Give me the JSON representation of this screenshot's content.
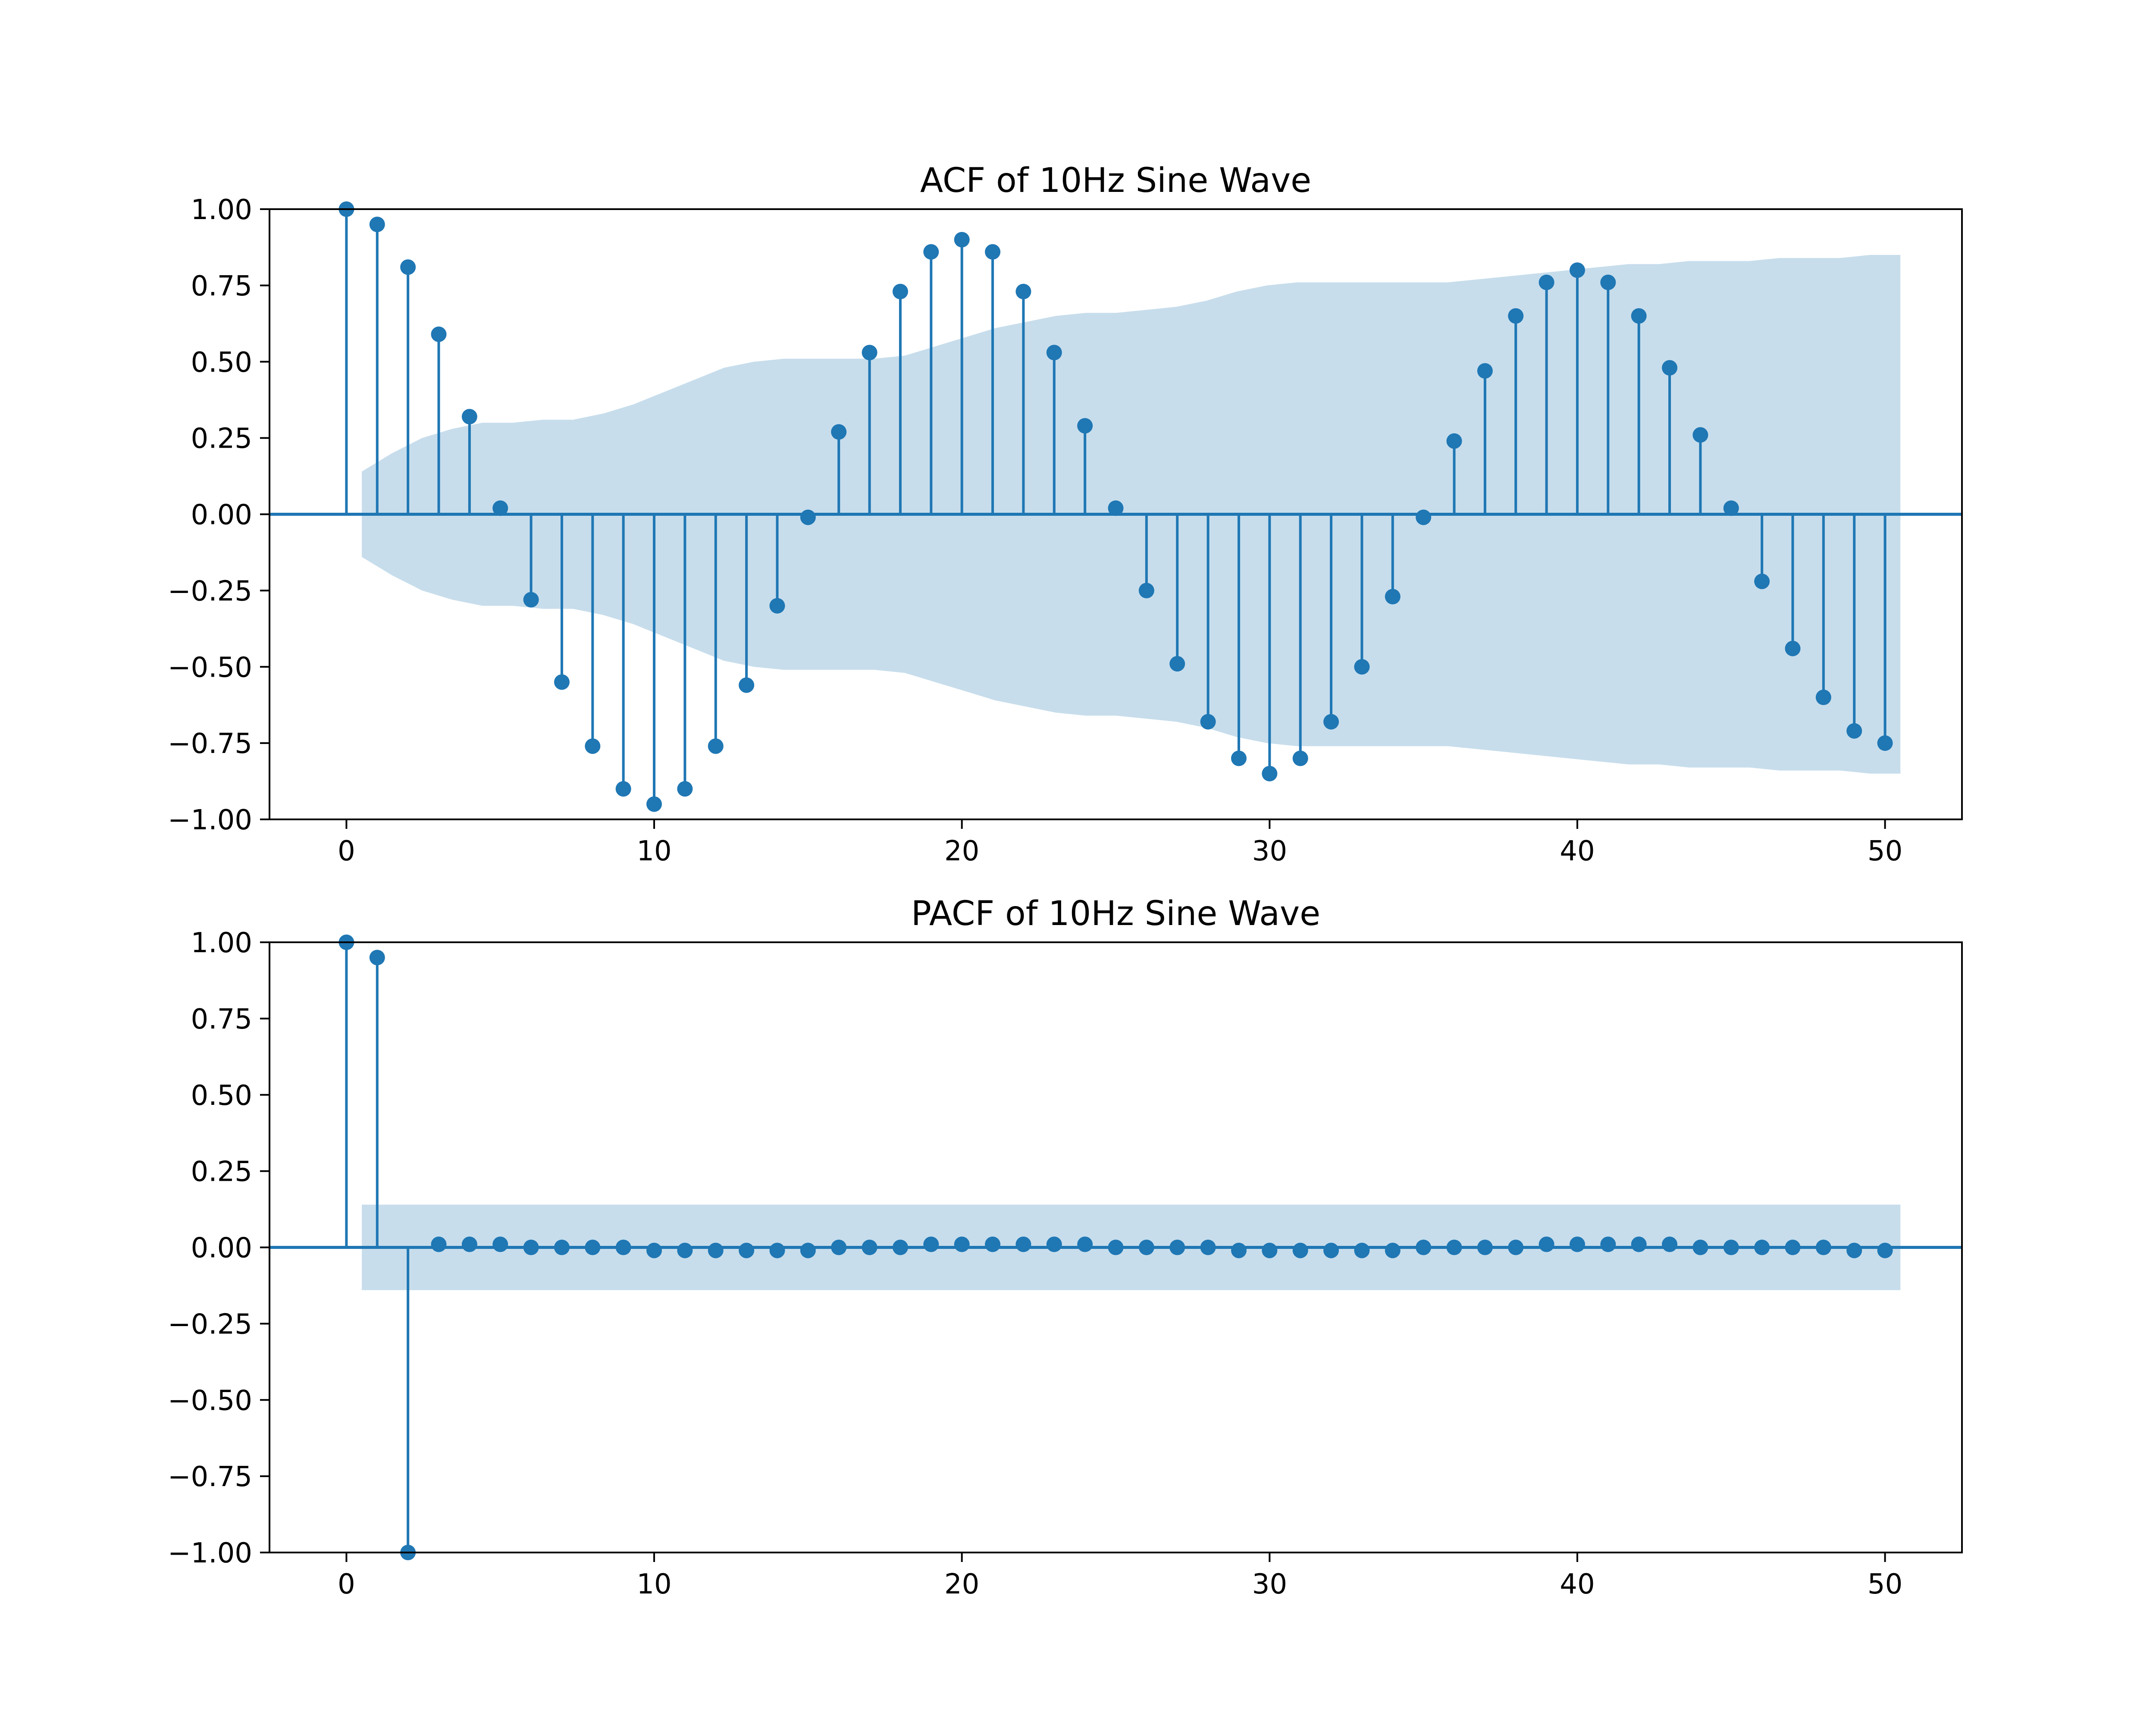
{
  "colors": {
    "stem": "#1f77b4",
    "confidence_band": "#1f77b4",
    "axes": "#000000",
    "background": "#ffffff"
  },
  "chart_data": [
    {
      "type": "stem",
      "title": "ACF of 10Hz Sine Wave",
      "xlabel": "",
      "ylabel": "",
      "xlim": [
        -2.5,
        52.5
      ],
      "ylim": [
        -1.0,
        1.0
      ],
      "xticks": [
        0,
        10,
        20,
        30,
        40,
        50
      ],
      "xtick_labels": [
        "0",
        "10",
        "20",
        "30",
        "40",
        "50"
      ],
      "yticks": [
        -1.0,
        -0.75,
        -0.5,
        -0.25,
        0.0,
        0.25,
        0.5,
        0.75,
        1.0
      ],
      "ytick_labels": [
        "−1.00",
        "−0.75",
        "−0.50",
        "−0.25",
        "0.00",
        "0.25",
        "0.50",
        "0.75",
        "1.00"
      ],
      "grid": false,
      "x": [
        0,
        1,
        2,
        3,
        4,
        5,
        6,
        7,
        8,
        9,
        10,
        11,
        12,
        13,
        14,
        15,
        16,
        17,
        18,
        19,
        20,
        21,
        22,
        23,
        24,
        25,
        26,
        27,
        28,
        29,
        30,
        31,
        32,
        33,
        34,
        35,
        36,
        37,
        38,
        39,
        40,
        41,
        42,
        43,
        44,
        45,
        46,
        47,
        48,
        49,
        50
      ],
      "values": [
        1.0,
        0.95,
        0.81,
        0.59,
        0.32,
        0.02,
        -0.28,
        -0.55,
        -0.76,
        -0.9,
        -0.95,
        -0.9,
        -0.76,
        -0.56,
        -0.3,
        -0.01,
        0.27,
        0.53,
        0.73,
        0.86,
        0.9,
        0.86,
        0.73,
        0.53,
        0.29,
        0.02,
        -0.25,
        -0.49,
        -0.68,
        -0.8,
        -0.85,
        -0.8,
        -0.68,
        -0.5,
        -0.27,
        -0.01,
        0.24,
        0.47,
        0.65,
        0.76,
        0.8,
        0.76,
        0.65,
        0.48,
        0.26,
        0.02,
        -0.22,
        -0.44,
        -0.6,
        -0.71,
        -0.75
      ],
      "confidence_band": {
        "x_range": [
          0.5,
          50.5
        ],
        "upper": [
          0.14,
          0.2,
          0.25,
          0.28,
          0.3,
          0.3,
          0.31,
          0.31,
          0.33,
          0.36,
          0.4,
          0.44,
          0.48,
          0.5,
          0.51,
          0.51,
          0.51,
          0.51,
          0.52,
          0.55,
          0.58,
          0.61,
          0.63,
          0.65,
          0.66,
          0.66,
          0.67,
          0.68,
          0.7,
          0.73,
          0.75,
          0.76,
          0.76,
          0.76,
          0.76,
          0.76,
          0.76,
          0.77,
          0.78,
          0.79,
          0.8,
          0.81,
          0.82,
          0.82,
          0.83,
          0.83,
          0.83,
          0.84,
          0.84,
          0.84,
          0.85,
          0.85
        ]
      }
    },
    {
      "type": "stem",
      "title": "PACF of 10Hz Sine Wave",
      "xlabel": "",
      "ylabel": "",
      "xlim": [
        -2.5,
        52.5
      ],
      "ylim": [
        -1.0,
        1.0
      ],
      "xticks": [
        0,
        10,
        20,
        30,
        40,
        50
      ],
      "xtick_labels": [
        "0",
        "10",
        "20",
        "30",
        "40",
        "50"
      ],
      "yticks": [
        -1.0,
        -0.75,
        -0.5,
        -0.25,
        0.0,
        0.25,
        0.5,
        0.75,
        1.0
      ],
      "ytick_labels": [
        "−1.00",
        "−0.75",
        "−0.50",
        "−0.25",
        "0.00",
        "0.25",
        "0.50",
        "0.75",
        "1.00"
      ],
      "grid": false,
      "x": [
        0,
        1,
        2,
        3,
        4,
        5,
        6,
        7,
        8,
        9,
        10,
        11,
        12,
        13,
        14,
        15,
        16,
        17,
        18,
        19,
        20,
        21,
        22,
        23,
        24,
        25,
        26,
        27,
        28,
        29,
        30,
        31,
        32,
        33,
        34,
        35,
        36,
        37,
        38,
        39,
        40,
        41,
        42,
        43,
        44,
        45,
        46,
        47,
        48,
        49,
        50
      ],
      "values": [
        1.0,
        0.95,
        -1.0,
        0.01,
        0.01,
        0.01,
        0.0,
        0.0,
        0.0,
        0.0,
        -0.01,
        -0.01,
        -0.01,
        -0.01,
        -0.01,
        -0.01,
        0.0,
        0.0,
        0.0,
        0.01,
        0.01,
        0.01,
        0.01,
        0.01,
        0.01,
        0.0,
        0.0,
        0.0,
        0.0,
        -0.01,
        -0.01,
        -0.01,
        -0.01,
        -0.01,
        -0.01,
        0.0,
        0.0,
        0.0,
        0.0,
        0.01,
        0.01,
        0.01,
        0.01,
        0.01,
        0.0,
        0.0,
        0.0,
        0.0,
        0.0,
        -0.01,
        -0.01
      ],
      "confidence_band": {
        "x_range": [
          0.5,
          50.5
        ],
        "upper": [
          0.14,
          0.14
        ]
      }
    }
  ]
}
